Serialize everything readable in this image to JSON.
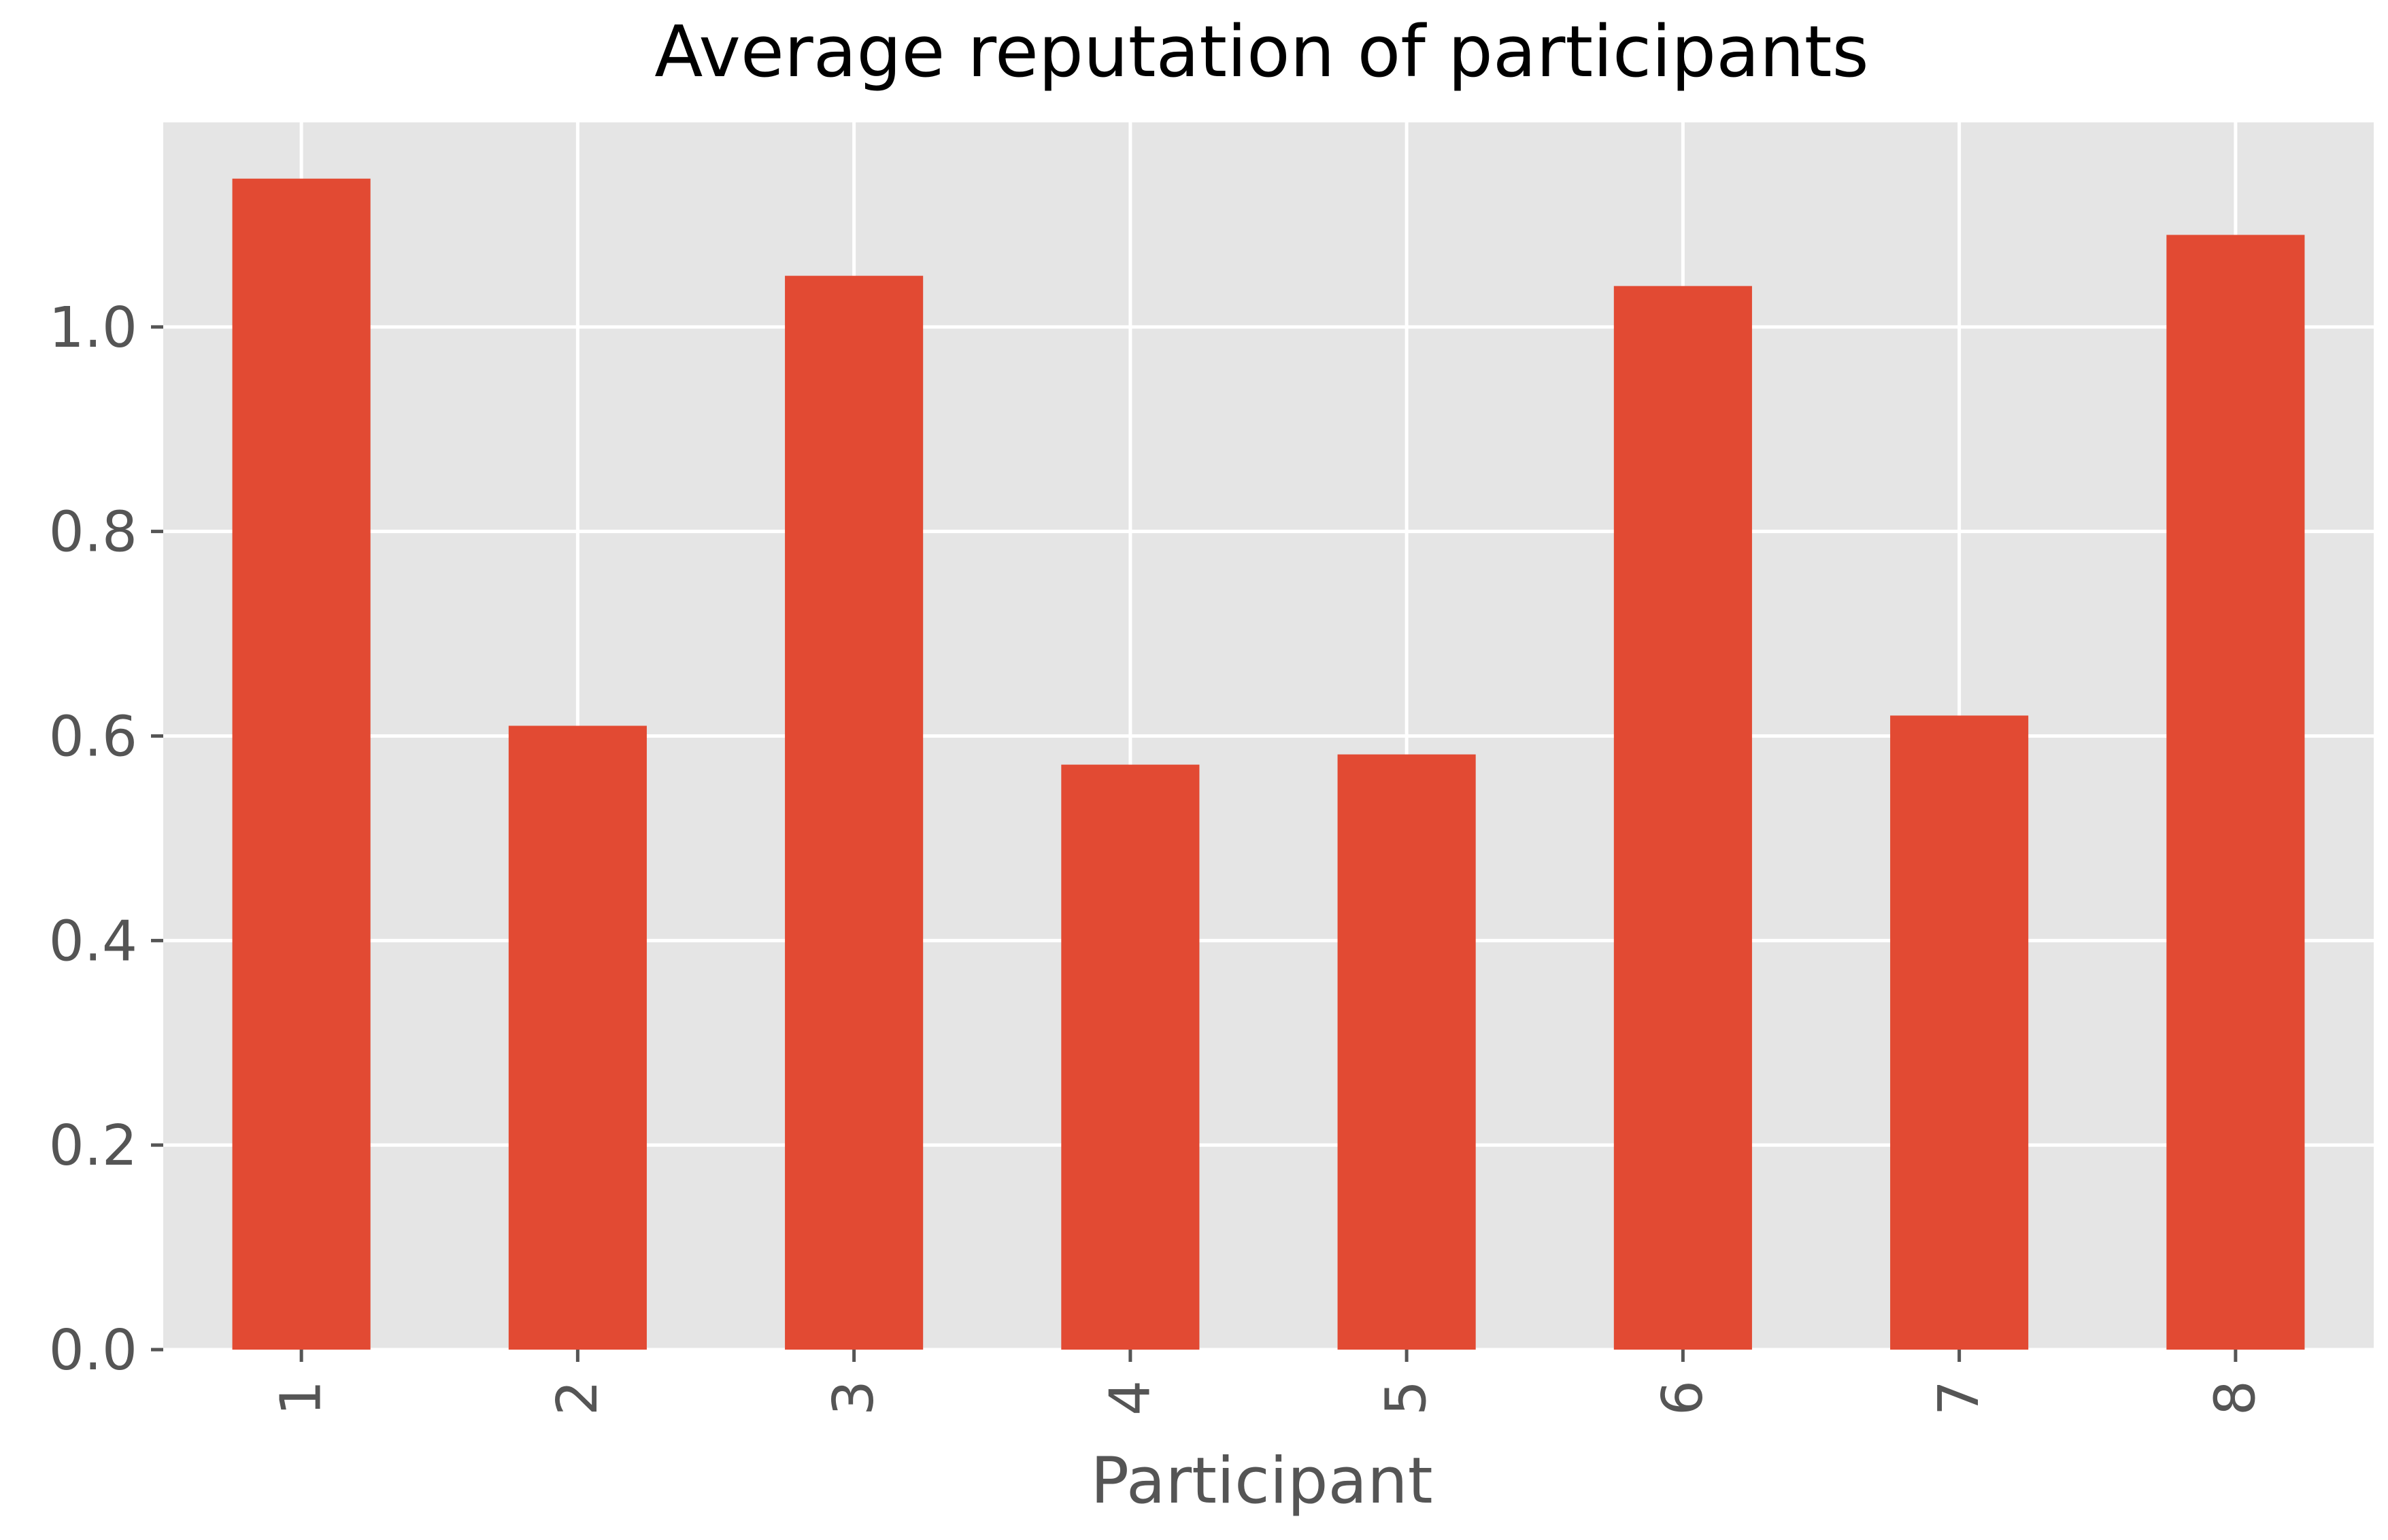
{
  "chart_data": {
    "type": "bar",
    "title": "Average reputation of participants",
    "xlabel": "Participant",
    "ylabel": "",
    "categories": [
      "1",
      "2",
      "3",
      "4",
      "5",
      "6",
      "7",
      "8"
    ],
    "values": [
      1.145,
      0.61,
      1.05,
      0.572,
      0.582,
      1.04,
      0.62,
      1.09
    ],
    "ylim": [
      0,
      1.2
    ],
    "yticks": [
      0.0,
      0.2,
      0.4,
      0.6,
      0.8,
      1.0
    ],
    "ytick_labels": [
      "0.0",
      "0.2",
      "0.4",
      "0.6",
      "0.8",
      "1.0"
    ],
    "grid": true,
    "style": "ggplot",
    "colors": {
      "bar": "#E24A33",
      "background": "#E5E5E5",
      "grid": "#FFFFFF"
    }
  }
}
